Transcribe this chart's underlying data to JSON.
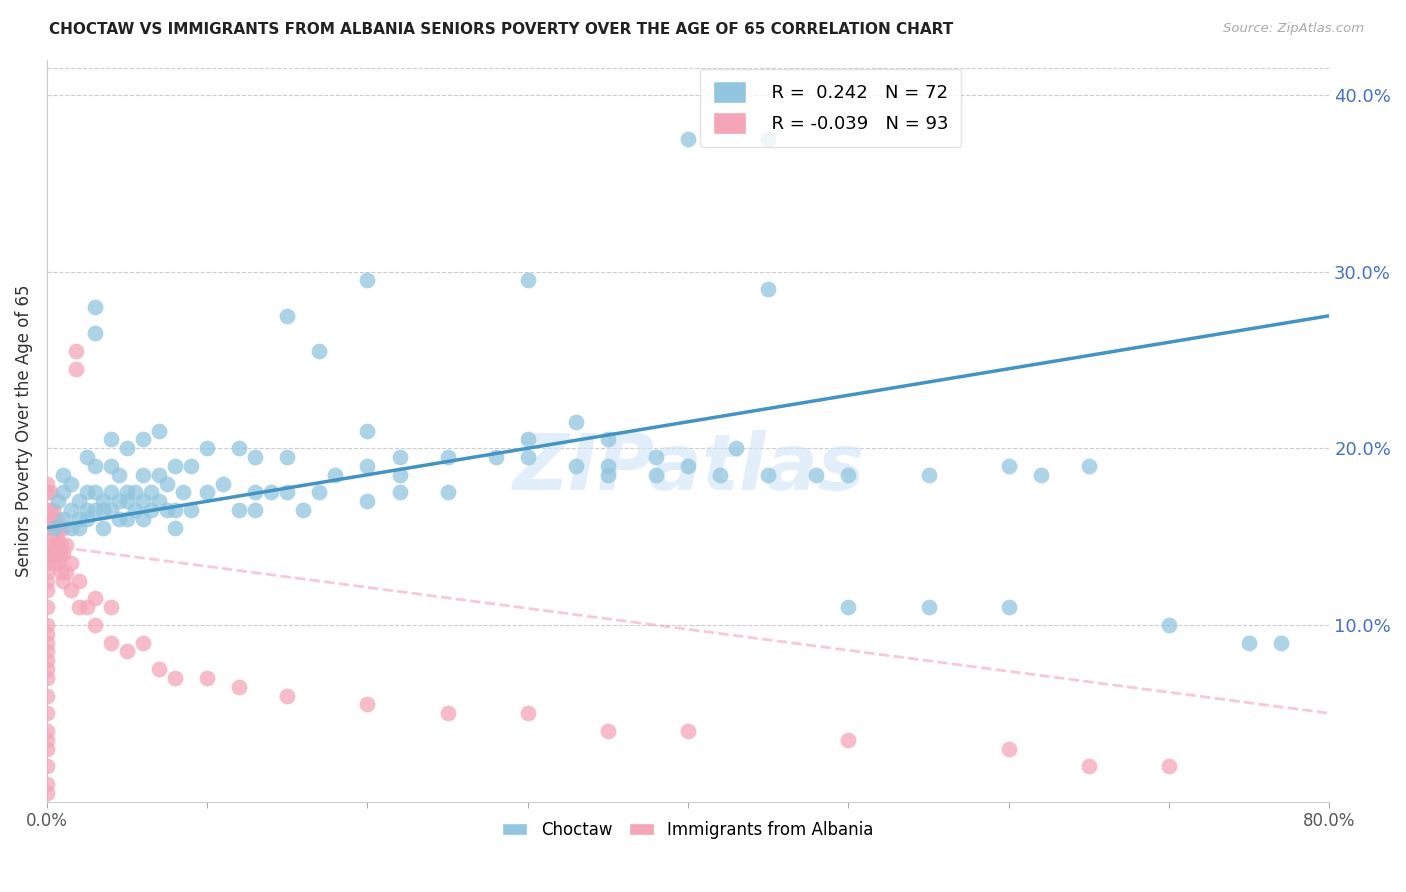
{
  "title": "CHOCTAW VS IMMIGRANTS FROM ALBANIA SENIORS POVERTY OVER THE AGE OF 65 CORRELATION CHART",
  "source": "Source: ZipAtlas.com",
  "ylabel": "Seniors Poverty Over the Age of 65",
  "right_ytick_labels": [
    "40.0%",
    "30.0%",
    "20.0%",
    "10.0%"
  ],
  "right_ytick_values": [
    0.4,
    0.3,
    0.2,
    0.1
  ],
  "xlim": [
    0.0,
    0.8
  ],
  "ylim": [
    0.0,
    0.42
  ],
  "watermark": "ZIPatlas",
  "choctaw_color": "#92c5de",
  "albania_color": "#f4a6b8",
  "choctaw_line_color": "#4393c3",
  "albania_line_color": "#f4a6b8",
  "choctaw_points": [
    [
      0.005,
      0.155
    ],
    [
      0.007,
      0.17
    ],
    [
      0.01,
      0.16
    ],
    [
      0.01,
      0.175
    ],
    [
      0.01,
      0.185
    ],
    [
      0.015,
      0.155
    ],
    [
      0.015,
      0.165
    ],
    [
      0.015,
      0.18
    ],
    [
      0.02,
      0.16
    ],
    [
      0.02,
      0.17
    ],
    [
      0.02,
      0.155
    ],
    [
      0.025,
      0.16
    ],
    [
      0.025,
      0.165
    ],
    [
      0.025,
      0.175
    ],
    [
      0.025,
      0.195
    ],
    [
      0.03,
      0.165
    ],
    [
      0.03,
      0.175
    ],
    [
      0.03,
      0.19
    ],
    [
      0.03,
      0.265
    ],
    [
      0.03,
      0.28
    ],
    [
      0.035,
      0.155
    ],
    [
      0.035,
      0.165
    ],
    [
      0.035,
      0.17
    ],
    [
      0.04,
      0.165
    ],
    [
      0.04,
      0.175
    ],
    [
      0.04,
      0.19
    ],
    [
      0.04,
      0.205
    ],
    [
      0.045,
      0.16
    ],
    [
      0.045,
      0.17
    ],
    [
      0.045,
      0.185
    ],
    [
      0.05,
      0.16
    ],
    [
      0.05,
      0.17
    ],
    [
      0.05,
      0.175
    ],
    [
      0.05,
      0.2
    ],
    [
      0.055,
      0.165
    ],
    [
      0.055,
      0.175
    ],
    [
      0.06,
      0.16
    ],
    [
      0.06,
      0.17
    ],
    [
      0.06,
      0.185
    ],
    [
      0.06,
      0.205
    ],
    [
      0.065,
      0.165
    ],
    [
      0.065,
      0.175
    ],
    [
      0.07,
      0.17
    ],
    [
      0.07,
      0.185
    ],
    [
      0.07,
      0.21
    ],
    [
      0.075,
      0.165
    ],
    [
      0.075,
      0.18
    ],
    [
      0.08,
      0.155
    ],
    [
      0.08,
      0.165
    ],
    [
      0.08,
      0.19
    ],
    [
      0.085,
      0.175
    ],
    [
      0.09,
      0.165
    ],
    [
      0.09,
      0.19
    ],
    [
      0.1,
      0.175
    ],
    [
      0.1,
      0.2
    ],
    [
      0.11,
      0.18
    ],
    [
      0.12,
      0.165
    ],
    [
      0.12,
      0.2
    ],
    [
      0.13,
      0.165
    ],
    [
      0.13,
      0.175
    ],
    [
      0.13,
      0.195
    ],
    [
      0.14,
      0.175
    ],
    [
      0.15,
      0.175
    ],
    [
      0.15,
      0.195
    ],
    [
      0.15,
      0.275
    ],
    [
      0.16,
      0.165
    ],
    [
      0.17,
      0.175
    ],
    [
      0.17,
      0.255
    ],
    [
      0.18,
      0.185
    ],
    [
      0.2,
      0.17
    ],
    [
      0.2,
      0.19
    ],
    [
      0.2,
      0.21
    ],
    [
      0.2,
      0.295
    ],
    [
      0.22,
      0.175
    ],
    [
      0.22,
      0.185
    ],
    [
      0.22,
      0.195
    ],
    [
      0.25,
      0.175
    ],
    [
      0.25,
      0.195
    ],
    [
      0.28,
      0.195
    ],
    [
      0.3,
      0.195
    ],
    [
      0.3,
      0.205
    ],
    [
      0.3,
      0.295
    ],
    [
      0.33,
      0.19
    ],
    [
      0.33,
      0.215
    ],
    [
      0.35,
      0.185
    ],
    [
      0.35,
      0.19
    ],
    [
      0.35,
      0.205
    ],
    [
      0.38,
      0.185
    ],
    [
      0.38,
      0.195
    ],
    [
      0.4,
      0.19
    ],
    [
      0.4,
      0.375
    ],
    [
      0.42,
      0.185
    ],
    [
      0.43,
      0.2
    ],
    [
      0.45,
      0.185
    ],
    [
      0.45,
      0.29
    ],
    [
      0.45,
      0.375
    ],
    [
      0.48,
      0.185
    ],
    [
      0.5,
      0.185
    ],
    [
      0.5,
      0.11
    ],
    [
      0.55,
      0.11
    ],
    [
      0.55,
      0.185
    ],
    [
      0.6,
      0.11
    ],
    [
      0.6,
      0.19
    ],
    [
      0.62,
      0.185
    ],
    [
      0.65,
      0.19
    ],
    [
      0.7,
      0.1
    ],
    [
      0.75,
      0.09
    ],
    [
      0.77,
      0.09
    ]
  ],
  "albania_points": [
    [
      0.0,
      0.005
    ],
    [
      0.0,
      0.01
    ],
    [
      0.0,
      0.02
    ],
    [
      0.0,
      0.03
    ],
    [
      0.0,
      0.035
    ],
    [
      0.0,
      0.04
    ],
    [
      0.0,
      0.05
    ],
    [
      0.0,
      0.06
    ],
    [
      0.0,
      0.07
    ],
    [
      0.0,
      0.075
    ],
    [
      0.0,
      0.08
    ],
    [
      0.0,
      0.085
    ],
    [
      0.0,
      0.09
    ],
    [
      0.0,
      0.095
    ],
    [
      0.0,
      0.1
    ],
    [
      0.0,
      0.11
    ],
    [
      0.0,
      0.12
    ],
    [
      0.0,
      0.125
    ],
    [
      0.0,
      0.13
    ],
    [
      0.0,
      0.135
    ],
    [
      0.0,
      0.14
    ],
    [
      0.0,
      0.145
    ],
    [
      0.0,
      0.155
    ],
    [
      0.0,
      0.16
    ],
    [
      0.0,
      0.165
    ],
    [
      0.0,
      0.175
    ],
    [
      0.0,
      0.18
    ],
    [
      0.002,
      0.155
    ],
    [
      0.002,
      0.165
    ],
    [
      0.002,
      0.175
    ],
    [
      0.003,
      0.145
    ],
    [
      0.003,
      0.16
    ],
    [
      0.004,
      0.14
    ],
    [
      0.004,
      0.155
    ],
    [
      0.004,
      0.165
    ],
    [
      0.005,
      0.135
    ],
    [
      0.005,
      0.14
    ],
    [
      0.005,
      0.15
    ],
    [
      0.005,
      0.155
    ],
    [
      0.006,
      0.14
    ],
    [
      0.006,
      0.15
    ],
    [
      0.006,
      0.16
    ],
    [
      0.007,
      0.135
    ],
    [
      0.007,
      0.145
    ],
    [
      0.007,
      0.155
    ],
    [
      0.008,
      0.14
    ],
    [
      0.008,
      0.155
    ],
    [
      0.009,
      0.13
    ],
    [
      0.009,
      0.145
    ],
    [
      0.01,
      0.125
    ],
    [
      0.01,
      0.14
    ],
    [
      0.01,
      0.155
    ],
    [
      0.012,
      0.13
    ],
    [
      0.012,
      0.145
    ],
    [
      0.015,
      0.12
    ],
    [
      0.015,
      0.135
    ],
    [
      0.018,
      0.245
    ],
    [
      0.018,
      0.255
    ],
    [
      0.02,
      0.11
    ],
    [
      0.02,
      0.125
    ],
    [
      0.025,
      0.11
    ],
    [
      0.03,
      0.1
    ],
    [
      0.03,
      0.115
    ],
    [
      0.04,
      0.09
    ],
    [
      0.04,
      0.11
    ],
    [
      0.05,
      0.085
    ],
    [
      0.06,
      0.09
    ],
    [
      0.07,
      0.075
    ],
    [
      0.08,
      0.07
    ],
    [
      0.1,
      0.07
    ],
    [
      0.12,
      0.065
    ],
    [
      0.15,
      0.06
    ],
    [
      0.2,
      0.055
    ],
    [
      0.25,
      0.05
    ],
    [
      0.3,
      0.05
    ],
    [
      0.35,
      0.04
    ],
    [
      0.4,
      0.04
    ],
    [
      0.5,
      0.035
    ],
    [
      0.6,
      0.03
    ],
    [
      0.65,
      0.02
    ],
    [
      0.7,
      0.02
    ]
  ]
}
